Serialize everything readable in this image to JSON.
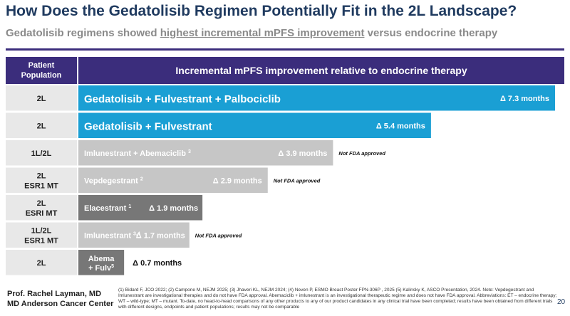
{
  "slide": {
    "title": "How Does the Gedatolisib Regimen Potentially Fit in the 2L Landscape?",
    "subtitle_prefix": "Gedatolisib regimens showed ",
    "subtitle_highlight": "highest incremental mPFS improvement",
    "subtitle_suffix": " versus endocrine therapy",
    "author_name": "Prof. Rachel Layman, MD",
    "author_affiliation": "MD Anderson Cancer Center",
    "references": "(1) Bidard F, JCO 2022; (2) Campone M, NEJM 2025; (3) Jhaveri KL, NEJM 2024; (4) Neven P, ESMO Breast Poster FPN-306P , 2025 (5) Kalinsky K, ASCO Presentation, 2024. Note: Vepdegestrant and Imlunestrant are investigational therapies and do not have FDA approval. Abemaciclib + imlunestrant is an investigational therapeutic regime and does not have FDA approval. Abbreviations: ET – endocrine therapy; WT – wild-type; MT – mutant. To-date, no head-to-head comparisons of any other products to any of our product candidates in any clinical trial have been completed; results have been obtained from different trials with different designs, endpoints and patient populations; results may not be comparable",
    "page_number": "20"
  },
  "chart_data": {
    "type": "bar",
    "orientation": "horizontal",
    "row_header": "Patient Population",
    "value_header": "Incremental mPFS improvement relative to endocrine therapy",
    "unit": "months",
    "xlim": [
      0,
      7.3
    ],
    "rows": [
      {
        "population": "2L",
        "regimen": "Gedatolisib + Fulvestrant + Palbociclib",
        "sup": "",
        "value": 7.3,
        "value_label": "Δ 7.3 months",
        "note": "",
        "color": "#1a9fd4",
        "label_color": "#ffffff",
        "label_size": 15
      },
      {
        "population": "2L",
        "regimen": "Gedatolisib + Fulvestrant",
        "sup": "",
        "value": 5.4,
        "value_label": "Δ 5.4 months",
        "note": "",
        "color": "#1a9fd4",
        "label_color": "#ffffff",
        "label_size": 15
      },
      {
        "population": "1L/2L",
        "regimen": "Imlunestrant + Abemaciclib",
        "sup": "3",
        "value": 3.9,
        "value_label": "Δ 3.9 months",
        "note": "Not FDA approved",
        "color": "#c6c6c6",
        "label_color": "#ffffff",
        "label_size": 11
      },
      {
        "population": "2L ESR1 MT",
        "regimen": "Vepdegestrant",
        "sup": "2",
        "value": 2.9,
        "value_label": "Δ 2.9 months",
        "note": "Not FDA approved",
        "color": "#c6c6c6",
        "label_color": "#ffffff",
        "label_size": 11
      },
      {
        "population": "2L ESRI MT",
        "regimen": "Elacestrant",
        "sup": "1",
        "value": 1.9,
        "value_label": "Δ 1.9 months",
        "note": "",
        "color": "#777777",
        "label_color": "#ffffff",
        "label_size": 11
      },
      {
        "population": "1L/2L ESR1 MT",
        "regimen": "Imlunestrant",
        "sup": "3,4",
        "value": 1.7,
        "value_label": "Δ 1.7 months",
        "note": "Not FDA approved",
        "color": "#c6c6c6",
        "label_color": "#ffffff",
        "label_size": 11
      },
      {
        "population": "2L",
        "regimen": "Abema + Fulv",
        "sup": "5",
        "value": 0.7,
        "value_label": "Δ 0.7 months",
        "note": "",
        "color": "#777777",
        "label_color": "#ffffff",
        "label_size": 11
      }
    ]
  }
}
